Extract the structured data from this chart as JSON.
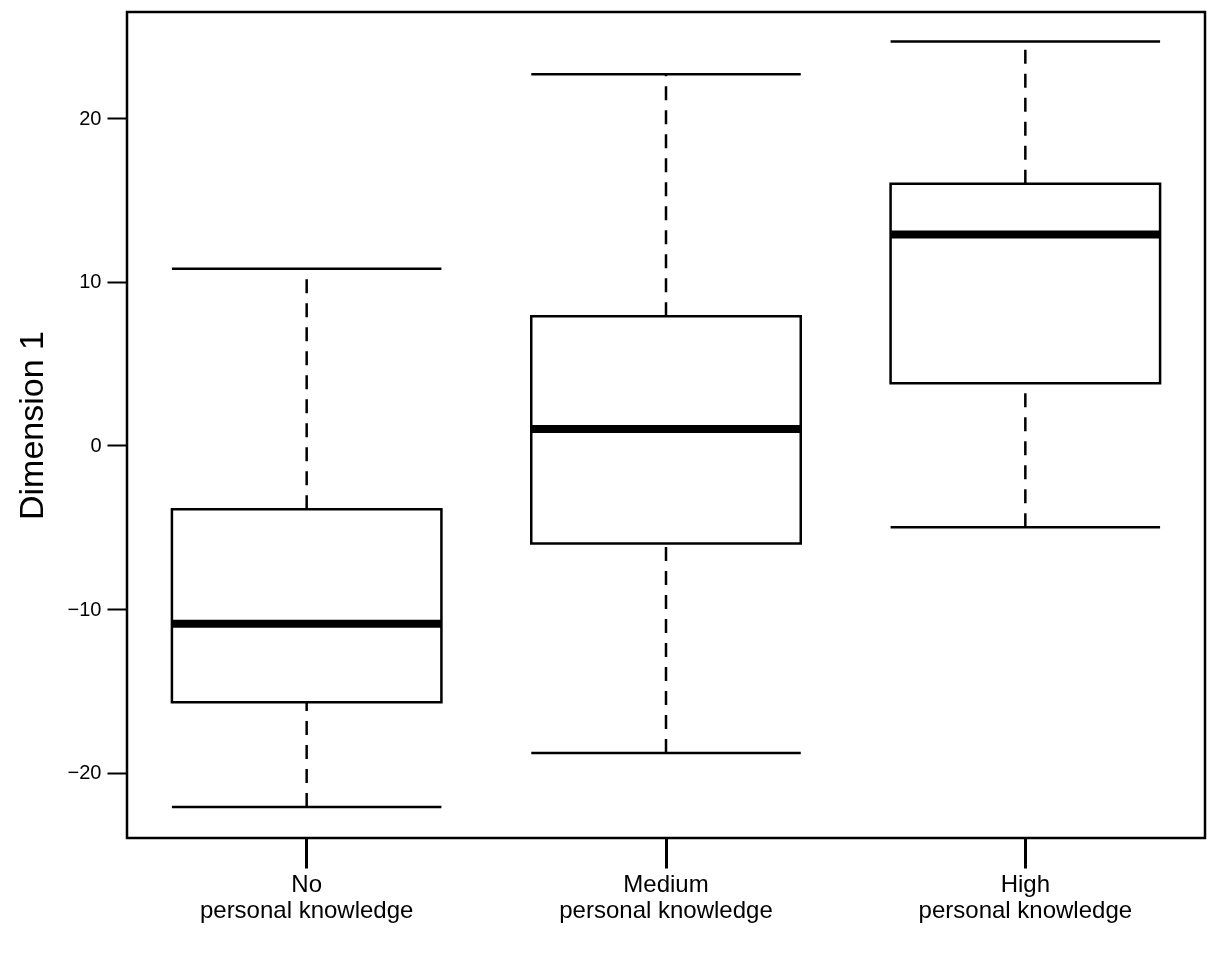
{
  "chart_data": {
    "type": "box",
    "ylabel": "Dimension 1",
    "categories": [
      "No\npersonal knowledge",
      "Medium\npersonal knowledge",
      "High\npersonal knowledge"
    ],
    "boxes": [
      {
        "low": -22.1,
        "q1": -15.7,
        "median": -10.9,
        "q3": -3.9,
        "high": 10.8
      },
      {
        "low": -18.8,
        "q1": -6.0,
        "median": 1.0,
        "q3": 7.9,
        "high": 22.7
      },
      {
        "low": -5.0,
        "q1": 3.8,
        "median": 12.9,
        "q3": 16.0,
        "high": 24.7
      }
    ],
    "ylim": [
      -24,
      26.5
    ],
    "yticks": [
      -20,
      -10,
      0,
      10,
      20
    ]
  }
}
